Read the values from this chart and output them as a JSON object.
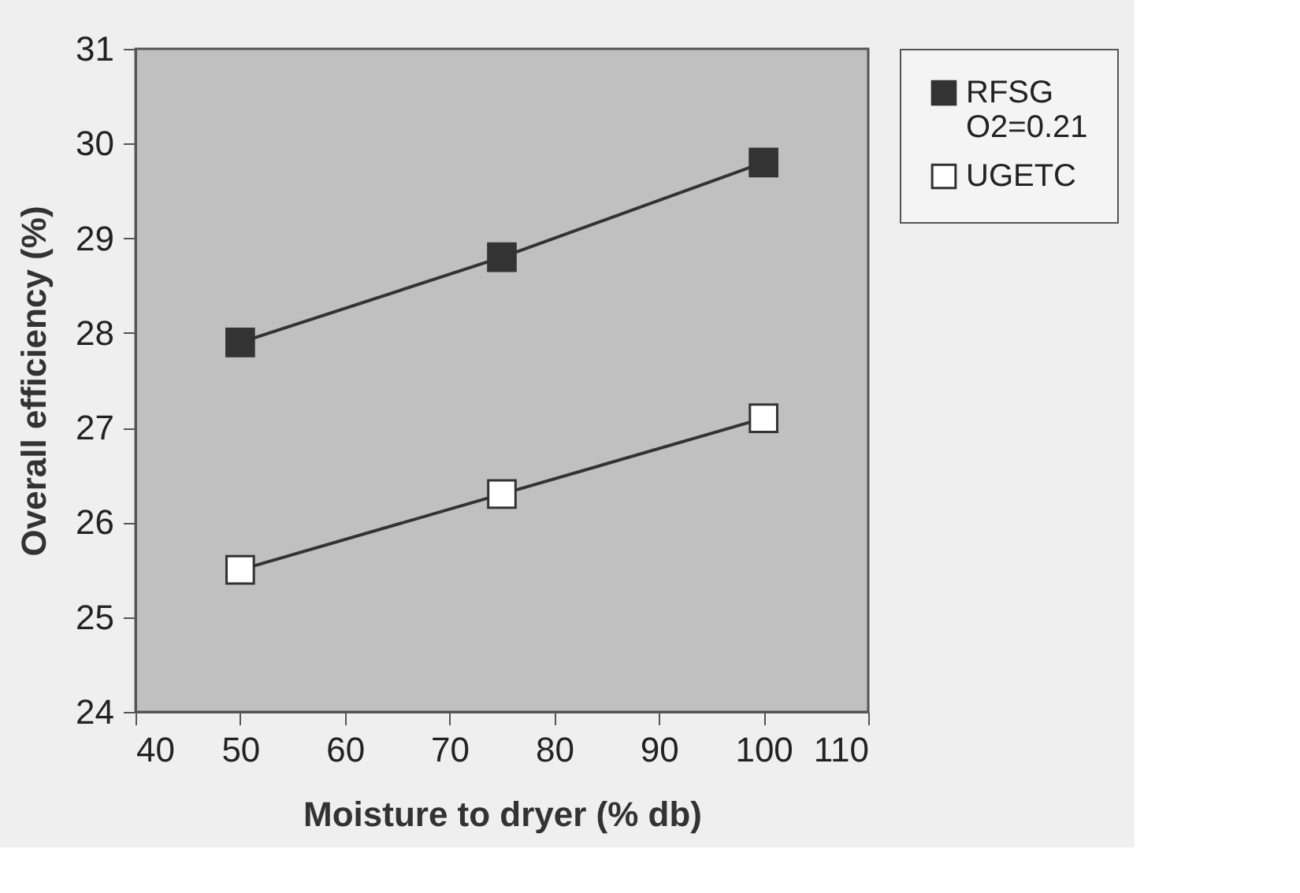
{
  "chart_data": {
    "type": "line",
    "xlabel": "Moisture to dryer (% db)",
    "ylabel": "Overall efficiency (%)",
    "x": [
      50,
      75,
      100
    ],
    "series": [
      {
        "name": "RFSG O2=0.21",
        "color": "#333333",
        "values": [
          27.9,
          28.8,
          29.8
        ]
      },
      {
        "name": "UGETC",
        "color": "#ffffff",
        "values": [
          25.5,
          26.3,
          27.1
        ]
      }
    ],
    "xlim": [
      40,
      110
    ],
    "xticks": [
      40,
      50,
      60,
      70,
      80,
      90,
      100,
      110
    ],
    "ylim": [
      24,
      31
    ],
    "yticks": [
      24,
      25,
      26,
      27,
      28,
      29,
      30,
      31
    ],
    "grid": false,
    "legend": "right",
    "marker": "square",
    "line_style": "solid"
  }
}
